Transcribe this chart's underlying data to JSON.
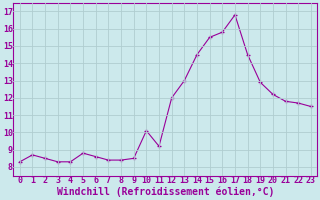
{
  "x": [
    0,
    1,
    2,
    3,
    4,
    5,
    6,
    7,
    8,
    9,
    10,
    11,
    12,
    13,
    14,
    15,
    16,
    17,
    18,
    19,
    20,
    21,
    22,
    23
  ],
  "y": [
    8.3,
    8.7,
    8.5,
    8.3,
    8.3,
    8.8,
    8.6,
    8.4,
    8.4,
    8.5,
    10.1,
    9.2,
    12.0,
    13.0,
    14.5,
    15.5,
    15.8,
    16.8,
    14.5,
    12.9,
    12.2,
    11.8,
    11.7,
    11.5
  ],
  "line_color": "#990099",
  "marker": "+",
  "bg_color": "#cce9ec",
  "grid_color": "#b0cdd0",
  "xlabel": "Windchill (Refroidissement éolien,°C)",
  "xlabel_color": "#990099",
  "ylim": [
    7.5,
    17.5
  ],
  "xlim": [
    -0.5,
    23.5
  ],
  "yticks": [
    8,
    9,
    10,
    11,
    12,
    13,
    14,
    15,
    16,
    17
  ],
  "xticks": [
    0,
    1,
    2,
    3,
    4,
    5,
    6,
    7,
    8,
    9,
    10,
    11,
    12,
    13,
    14,
    15,
    16,
    17,
    18,
    19,
    20,
    21,
    22,
    23
  ],
  "tick_label_fontsize": 6.0,
  "xlabel_fontsize": 7.0
}
